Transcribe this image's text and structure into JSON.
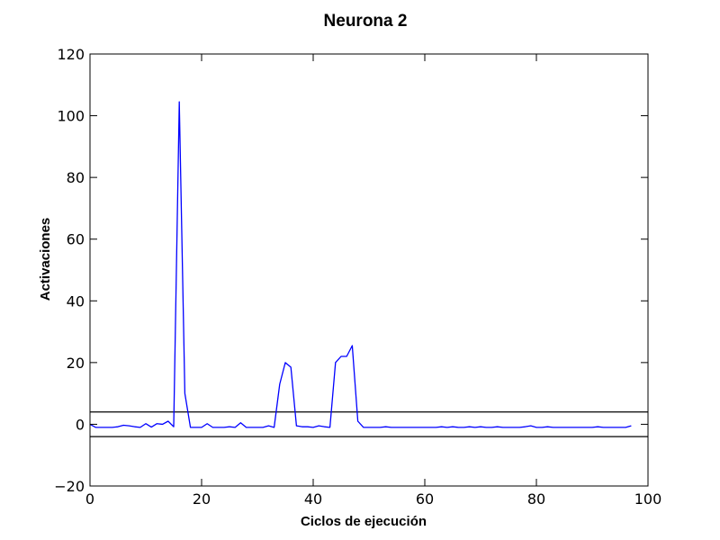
{
  "chart_data": {
    "type": "line",
    "title": "Neurona 2",
    "xlabel": "Ciclos de ejecución",
    "ylabel": "Activaciones",
    "xlim": [
      0,
      100
    ],
    "ylim": [
      -20,
      120
    ],
    "xticks": [
      0,
      20,
      40,
      60,
      80,
      100
    ],
    "yticks": [
      -20,
      0,
      20,
      40,
      60,
      80,
      100,
      120
    ],
    "xtick_labels": [
      "0",
      "20",
      "40",
      "60",
      "80",
      "100"
    ],
    "ytick_labels": [
      "−20",
      "0",
      "20",
      "40",
      "60",
      "80",
      "100",
      "120"
    ],
    "grid": false,
    "series_color": "#0000ff",
    "reference_line_color": "#000000",
    "reference_lines": [
      4,
      -4
    ],
    "series": [
      {
        "x": [
          0,
          1,
          2,
          3,
          4,
          5,
          6,
          7,
          8,
          9,
          10,
          11,
          12,
          13,
          14,
          15,
          16,
          17,
          18,
          19,
          20,
          21,
          22,
          23,
          24,
          25,
          26,
          27,
          28,
          29,
          30,
          31,
          32,
          33,
          34,
          35,
          36,
          37,
          38,
          39,
          40,
          41,
          42,
          43,
          44,
          45,
          46,
          47,
          48,
          49,
          50,
          51,
          52,
          53,
          54,
          55,
          56,
          57,
          58,
          59,
          60,
          61,
          62,
          63,
          64,
          65,
          66,
          67,
          68,
          69,
          70,
          71,
          72,
          73,
          74,
          75,
          76,
          77,
          78,
          79,
          80,
          81,
          82,
          83,
          84,
          85,
          86,
          87,
          88,
          89,
          90,
          91,
          92,
          93,
          94,
          95,
          96,
          97
        ],
        "values": [
          0,
          -1,
          -1,
          -1,
          -1,
          -0.8,
          -0.3,
          -0.5,
          -0.8,
          -1,
          0.2,
          -0.9,
          0.2,
          0,
          1,
          -0.8,
          104.5,
          10,
          -1,
          -1,
          -1,
          0.2,
          -1,
          -1,
          -1,
          -0.8,
          -1,
          0.5,
          -1,
          -1,
          -1,
          -1,
          -0.5,
          -1,
          13,
          20,
          18.5,
          -0.5,
          -0.8,
          -0.8,
          -1,
          -0.5,
          -0.8,
          -1,
          20,
          22,
          22,
          25.5,
          1,
          -1,
          -1,
          -1,
          -1,
          -0.8,
          -1,
          -1,
          -1,
          -1,
          -1,
          -1,
          -1,
          -1,
          -1,
          -0.8,
          -1,
          -0.8,
          -1,
          -1,
          -0.8,
          -1,
          -0.8,
          -1,
          -1,
          -0.8,
          -1,
          -1,
          -1,
          -1,
          -0.8,
          -0.5,
          -1,
          -1,
          -0.8,
          -1,
          -1,
          -1,
          -1,
          -1,
          -1,
          -1,
          -1,
          -0.8,
          -1,
          -1,
          -1,
          -1,
          -1,
          -0.5
        ]
      }
    ]
  }
}
